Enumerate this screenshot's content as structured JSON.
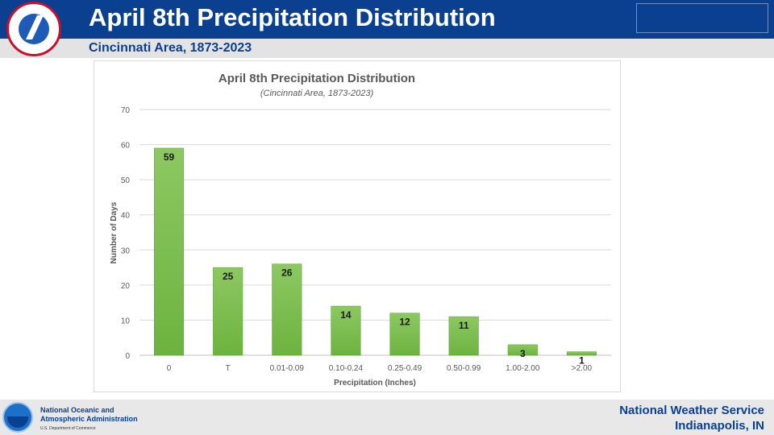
{
  "header": {
    "title": "April 8th Precipitation Distribution",
    "subtitle": "Cincinnati Area, 1873-2023"
  },
  "chart_data": {
    "type": "bar",
    "title": "April 8th Precipitation Distribution",
    "subtitle": "(Cincinnati Area, 1873-2023)",
    "xlabel": "Precipitation (Inches)",
    "ylabel": "Number of Days",
    "categories": [
      "0",
      "T",
      "0.01-0.09",
      "0.10-0.24",
      "0.25-0.49",
      "0.50-0.99",
      "1.00-2.00",
      ">2.00"
    ],
    "values": [
      59,
      25,
      26,
      14,
      12,
      11,
      3,
      1
    ],
    "ylim": [
      0,
      70
    ],
    "yticks": [
      0,
      10,
      20,
      30,
      40,
      50,
      60,
      70
    ],
    "grid": true,
    "legend": "none",
    "bar_color": "#6db33f",
    "bar_color_light": "#8dc862"
  },
  "footer": {
    "org_line1": "National Oceanic and",
    "org_line2": "Atmospheric Administration",
    "dept": "U.S. Department of Commerce",
    "nws_line1": "National Weather Service",
    "nws_line2": "Indianapolis, IN"
  }
}
